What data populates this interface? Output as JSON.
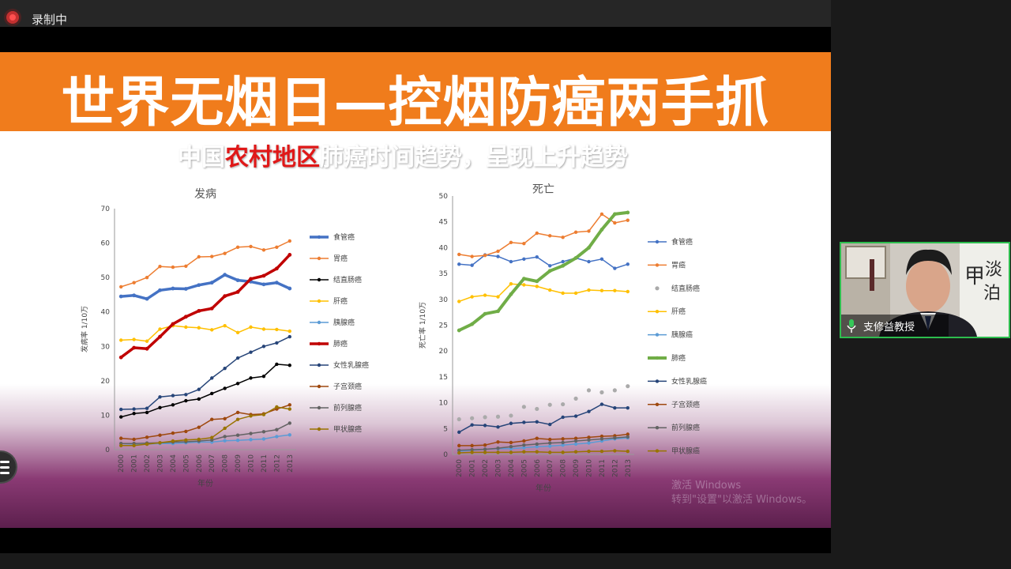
{
  "app": {
    "recording_label": "录制中"
  },
  "slide": {
    "title": "世界无烟日—控烟防癌两手抓",
    "subtitle_pre": "中国",
    "subtitle_highlight": "农村地区",
    "subtitle_post": "肺癌时间趋势，呈现上升趋势"
  },
  "watermark": {
    "line1": "激活 Windows",
    "line2": "转到\"设置\"以激活 Windows。"
  },
  "participant": {
    "name": "支修益教授"
  },
  "colors": {
    "banner": "#f07c1c",
    "highlight": "#e01818",
    "active_speaker_border": "#2dbd4e",
    "series": {
      "esophageal": "#4472c4",
      "stomach": "#ed7d31",
      "colorectal": "#000000",
      "liver": "#ffc000",
      "pancreas": "#5b9bd5",
      "lung_inc": "#c00000",
      "lung_mort": "#70ad47",
      "breast": "#264478",
      "cervical": "#9e480e",
      "prostate": "#636363",
      "thyroid": "#997300"
    }
  },
  "chart_data": [
    {
      "type": "line",
      "title": "发病",
      "xlabel": "年份",
      "ylabel": "发病率 1/10万",
      "ylim": [
        0,
        70
      ],
      "yticks": [
        0,
        10,
        20,
        30,
        40,
        50,
        60,
        70
      ],
      "x": [
        "2000",
        "2001",
        "2002",
        "2003",
        "2004",
        "2005",
        "2006",
        "2007",
        "2008",
        "2009",
        "2010",
        "2011",
        "2012",
        "2013"
      ],
      "legend_position": "right",
      "series": [
        {
          "name": "食管癌",
          "key": "esophageal",
          "width": 3.5,
          "values": [
            44.5,
            44.8,
            43.8,
            46.3,
            46.8,
            46.7,
            47.8,
            48.5,
            50.8,
            49.2,
            48.8,
            48.0,
            48.5,
            46.8
          ]
        },
        {
          "name": "胃癌",
          "key": "stomach",
          "width": 1.5,
          "values": [
            47.3,
            48.5,
            50.0,
            53.2,
            53.0,
            53.3,
            56.0,
            56.1,
            57.0,
            58.8,
            59.0,
            58.0,
            58.8,
            60.6
          ]
        },
        {
          "name": "结直肠癌",
          "key": "colorectal",
          "width": 1.5,
          "values": [
            9.5,
            10.5,
            10.8,
            12.2,
            13.0,
            14.2,
            14.7,
            16.3,
            17.8,
            19.2,
            20.8,
            21.3,
            24.8,
            24.5
          ]
        },
        {
          "name": "肝癌",
          "key": "liver",
          "width": 1.5,
          "values": [
            31.8,
            32.0,
            31.5,
            35.0,
            36.0,
            35.6,
            35.4,
            34.8,
            36.0,
            34.0,
            35.6,
            35.0,
            34.9,
            34.4
          ]
        },
        {
          "name": "胰腺癌",
          "key": "pancreas",
          "width": 1.5,
          "values": [
            1.2,
            1.4,
            1.6,
            1.8,
            1.8,
            2.0,
            2.2,
            2.2,
            2.6,
            2.7,
            2.9,
            3.1,
            3.8,
            4.3
          ]
        },
        {
          "name": "肺癌",
          "key": "lung_inc",
          "width": 3.5,
          "values": [
            26.8,
            29.6,
            29.3,
            32.8,
            36.5,
            38.6,
            40.3,
            41.0,
            44.6,
            45.8,
            49.6,
            50.5,
            52.6,
            56.6
          ]
        },
        {
          "name": "女性乳腺癌",
          "key": "breast",
          "width": 1.5,
          "values": [
            11.7,
            11.8,
            12.0,
            15.3,
            15.7,
            16.0,
            17.5,
            20.8,
            23.6,
            26.6,
            28.3,
            30.0,
            31.0,
            32.8
          ]
        },
        {
          "name": "子宫颈癌",
          "key": "cervical",
          "width": 1.5,
          "values": [
            3.3,
            3.0,
            3.6,
            4.2,
            4.8,
            5.3,
            6.5,
            8.8,
            9.0,
            10.8,
            10.2,
            10.4,
            11.8,
            13.0
          ]
        },
        {
          "name": "前列腺癌",
          "key": "prostate",
          "width": 1.5,
          "values": [
            1.8,
            1.8,
            1.9,
            2.0,
            2.2,
            2.3,
            2.5,
            2.8,
            3.8,
            4.2,
            4.7,
            5.2,
            5.8,
            7.7
          ]
        },
        {
          "name": "甲状腺癌",
          "key": "thyroid",
          "width": 1.5,
          "values": [
            1.2,
            1.2,
            1.6,
            2.0,
            2.5,
            2.8,
            3.0,
            3.5,
            6.2,
            8.8,
            9.8,
            10.2,
            12.4,
            11.8
          ]
        }
      ]
    },
    {
      "type": "line",
      "title": "死亡",
      "xlabel": "年份",
      "ylabel": "死亡率 1/10万",
      "ylim": [
        0,
        50
      ],
      "yticks": [
        0,
        5,
        10,
        15,
        20,
        25,
        30,
        35,
        40,
        45,
        50
      ],
      "x": [
        "2000",
        "2001",
        "2002",
        "2003",
        "2004",
        "2005",
        "2006",
        "2007",
        "2008",
        "2009",
        "2010",
        "2011",
        "2012",
        "2013"
      ],
      "legend_position": "right",
      "series": [
        {
          "name": "食管癌",
          "key": "esophageal",
          "width": 1.5,
          "values": [
            36.8,
            36.6,
            38.6,
            38.3,
            37.3,
            37.8,
            38.2,
            36.5,
            37.3,
            38.0,
            37.3,
            37.8,
            36.0,
            36.8
          ]
        },
        {
          "name": "胃癌",
          "key": "stomach",
          "width": 1.5,
          "values": [
            38.7,
            38.3,
            38.5,
            39.3,
            41.0,
            40.8,
            42.8,
            42.3,
            42.0,
            43.0,
            43.2,
            46.5,
            44.8,
            45.3
          ]
        },
        {
          "name": "结直肠癌",
          "key": "colorectal",
          "width": 1.5,
          "markers_only": true,
          "values": [
            6.8,
            7.0,
            7.2,
            7.3,
            7.5,
            9.2,
            8.8,
            9.6,
            9.7,
            10.8,
            12.4,
            12.0,
            12.4,
            13.2
          ]
        },
        {
          "name": "肝癌",
          "key": "liver",
          "width": 1.5,
          "values": [
            29.6,
            30.5,
            30.8,
            30.5,
            33.0,
            32.8,
            32.5,
            31.8,
            31.2,
            31.2,
            31.8,
            31.7,
            31.7,
            31.5
          ]
        },
        {
          "name": "胰腺癌",
          "key": "pancreas",
          "width": 1.5,
          "values": [
            0.6,
            0.8,
            1.0,
            1.1,
            1.1,
            1.3,
            1.5,
            1.6,
            1.8,
            2.0,
            2.2,
            2.6,
            3.0,
            3.2
          ]
        },
        {
          "name": "肺癌",
          "key": "lung_mort",
          "width": 4,
          "values": [
            24.0,
            25.2,
            27.2,
            27.7,
            31.0,
            34.0,
            33.5,
            35.5,
            36.5,
            38.0,
            40.0,
            43.5,
            46.5,
            46.8
          ]
        },
        {
          "name": "女性乳腺癌",
          "key": "breast",
          "width": 1.5,
          "values": [
            4.3,
            5.7,
            5.6,
            5.3,
            6.0,
            6.2,
            6.3,
            5.8,
            7.2,
            7.4,
            8.3,
            9.7,
            9.0,
            9.0
          ]
        },
        {
          "name": "子宫颈癌",
          "key": "cervical",
          "width": 1.5,
          "values": [
            1.7,
            1.7,
            1.8,
            2.4,
            2.3,
            2.6,
            3.1,
            2.9,
            3.0,
            3.1,
            3.3,
            3.5,
            3.6,
            3.9
          ]
        },
        {
          "name": "前列腺癌",
          "key": "prostate",
          "width": 1.5,
          "values": [
            0.8,
            0.9,
            1.0,
            1.2,
            1.5,
            1.8,
            2.0,
            2.2,
            2.3,
            2.6,
            2.8,
            3.0,
            3.2,
            3.4
          ]
        },
        {
          "name": "甲状腺癌",
          "key": "thyroid",
          "width": 1.5,
          "values": [
            0.3,
            0.4,
            0.4,
            0.4,
            0.4,
            0.5,
            0.5,
            0.4,
            0.4,
            0.5,
            0.6,
            0.6,
            0.7,
            0.6
          ]
        }
      ]
    }
  ]
}
